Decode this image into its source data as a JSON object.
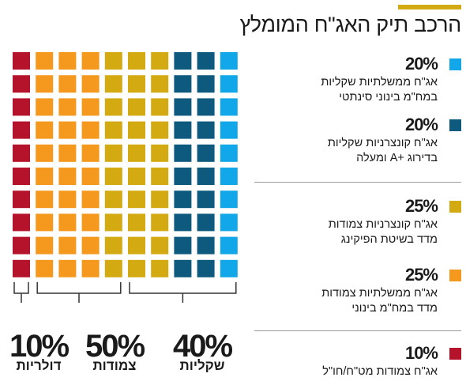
{
  "title": "הרכב תיק האג\"ח המומלץ",
  "colors": {
    "accent": "#D4AA12",
    "red": "#B5122C",
    "orange": "#F5981E",
    "gold": "#D4AA12",
    "navy": "#0E5A7E",
    "light_blue": "#12A7E8"
  },
  "chart_data": {
    "type": "waffle",
    "title": "הרכב תיק האג\"ח המומלץ",
    "grid": {
      "rows": 10,
      "columns": 10
    },
    "series": [
      {
        "name": "אג\"ח ממשלתיות שקליות במח\"מ בינוני סינתטי",
        "value": 20,
        "color": "#12A7E8"
      },
      {
        "name": "אג\"ח קונצרניות שקליות בדירוג +A ומעלה",
        "value": 20,
        "color": "#0E5A7E"
      },
      {
        "name": "אג\"ח קונצרניות צמודות מדד בשיטת הפיקינג",
        "value": 25,
        "color": "#D4AA12"
      },
      {
        "name": "אג\"ח ממשלתיות צמודות מדד במח\"מ בינוני",
        "value": 25,
        "color": "#F5981E"
      },
      {
        "name": "אג\"ח צמודות מט\"ח/חו\"ל",
        "value": 10,
        "color": "#B5122C"
      }
    ],
    "groups": [
      {
        "label": "שקליות",
        "pct": "40%",
        "value": 40
      },
      {
        "label": "צמודות",
        "pct": "50%",
        "value": 50
      },
      {
        "label": "דולריות",
        "pct": "10%",
        "value": 10
      }
    ]
  },
  "legend": [
    {
      "pct": "20%",
      "line1": "אג\"ח ממשלתיות שקליות",
      "line2": "במח\"מ בינוני סינתטי"
    },
    {
      "pct": "20%",
      "line1": "אג\"ח קונצרניות שקליות",
      "line2": "בדירוג +A ומעלה"
    },
    {
      "pct": "25%",
      "line1": "אג\"ח קונצרניות צמודות",
      "line2": "מדד בשיטת הפיקינג"
    },
    {
      "pct": "25%",
      "line1": "אג\"ח ממשלתיות צמודות",
      "line2": "מדד במח\"מ בינוני"
    },
    {
      "pct": "10%",
      "line1": "אג\"ח צמודות מט\"ח/חו\"ל",
      "line2": ""
    }
  ]
}
